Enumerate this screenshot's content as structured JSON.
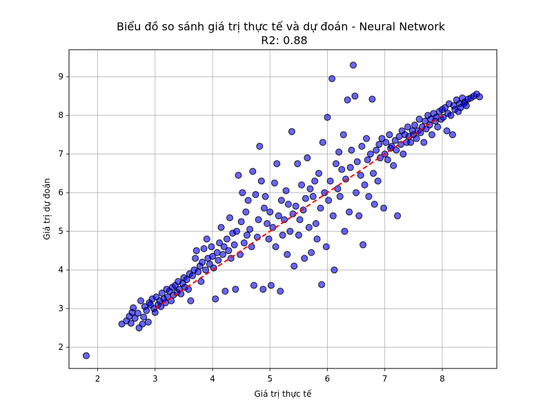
{
  "chart_data": {
    "type": "scatter",
    "title": "Biểu đồ so sánh giá trị thực tế và dự đoán - Neural Network",
    "subtitle": "R2: 0.88",
    "xlabel": "Giá trị thực tế",
    "ylabel": "Giá trị dự đoán",
    "xlim": [
      1.5,
      8.95
    ],
    "ylim": [
      1.45,
      9.7
    ],
    "xticks": [
      2,
      3,
      4,
      5,
      6,
      7,
      8
    ],
    "yticks": [
      2,
      3,
      4,
      5,
      6,
      7,
      8,
      9
    ],
    "grid": true,
    "point_color": "#0000ff",
    "reference_line": {
      "x": [
        3.0,
        8.0
      ],
      "y": [
        3.0,
        8.0
      ],
      "color": "#ff0000",
      "style": "dashed"
    },
    "points": [
      [
        1.8,
        1.78
      ],
      [
        2.42,
        2.6
      ],
      [
        2.5,
        2.68
      ],
      [
        2.55,
        2.8
      ],
      [
        2.58,
        2.62
      ],
      [
        2.6,
        2.9
      ],
      [
        2.62,
        3.02
      ],
      [
        2.65,
        2.75
      ],
      [
        2.7,
        2.88
      ],
      [
        2.72,
        2.5
      ],
      [
        2.75,
        3.2
      ],
      [
        2.78,
        2.6
      ],
      [
        2.8,
        2.78
      ],
      [
        2.82,
        3.05
      ],
      [
        2.85,
        2.95
      ],
      [
        2.88,
        2.65
      ],
      [
        2.9,
        3.15
      ],
      [
        2.92,
        3.1
      ],
      [
        2.95,
        3.25
      ],
      [
        2.98,
        3.0
      ],
      [
        3.0,
        2.9
      ],
      [
        3.02,
        3.3
      ],
      [
        3.05,
        3.1
      ],
      [
        3.08,
        3.2
      ],
      [
        3.1,
        3.05
      ],
      [
        3.12,
        3.4
      ],
      [
        3.15,
        3.25
      ],
      [
        3.18,
        3.15
      ],
      [
        3.2,
        3.5
      ],
      [
        3.22,
        3.3
      ],
      [
        3.25,
        3.45
      ],
      [
        3.28,
        3.2
      ],
      [
        3.3,
        3.55
      ],
      [
        3.32,
        3.35
      ],
      [
        3.35,
        3.6
      ],
      [
        3.38,
        3.42
      ],
      [
        3.4,
        3.7
      ],
      [
        3.42,
        3.5
      ],
      [
        3.45,
        3.38
      ],
      [
        3.48,
        3.65
      ],
      [
        3.5,
        3.8
      ],
      [
        3.52,
        3.55
      ],
      [
        3.55,
        3.75
      ],
      [
        3.58,
        3.5
      ],
      [
        3.6,
        3.9
      ],
      [
        3.62,
        3.2
      ],
      [
        3.65,
        3.85
      ],
      [
        3.68,
        4.0
      ],
      [
        3.7,
        4.3
      ],
      [
        3.72,
        4.5
      ],
      [
        3.75,
        3.95
      ],
      [
        3.78,
        4.1
      ],
      [
        3.8,
        3.7
      ],
      [
        3.82,
        4.2
      ],
      [
        3.85,
        4.55
      ],
      [
        3.88,
        4.0
      ],
      [
        3.9,
        4.8
      ],
      [
        3.92,
        4.3
      ],
      [
        3.95,
        4.15
      ],
      [
        3.98,
        4.6
      ],
      [
        4.0,
        4.35
      ],
      [
        4.02,
        4.05
      ],
      [
        4.05,
        3.25
      ],
      [
        4.08,
        4.45
      ],
      [
        4.1,
        4.25
      ],
      [
        4.12,
        4.7
      ],
      [
        4.15,
        5.1
      ],
      [
        4.18,
        4.4
      ],
      [
        4.2,
        4.6
      ],
      [
        4.22,
        3.45
      ],
      [
        4.25,
        4.8
      ],
      [
        4.28,
        4.5
      ],
      [
        4.3,
        5.35
      ],
      [
        4.32,
        4.3
      ],
      [
        4.35,
        4.95
      ],
      [
        4.38,
        4.65
      ],
      [
        4.4,
        3.5
      ],
      [
        4.42,
        5.0
      ],
      [
        4.45,
        6.45
      ],
      [
        4.48,
        4.4
      ],
      [
        4.5,
        5.25
      ],
      [
        4.52,
        6.0
      ],
      [
        4.55,
        4.7
      ],
      [
        4.58,
        5.5
      ],
      [
        4.6,
        4.9
      ],
      [
        4.62,
        5.8
      ],
      [
        4.65,
        5.05
      ],
      [
        4.68,
        4.6
      ],
      [
        4.7,
        6.55
      ],
      [
        4.72,
        3.6
      ],
      [
        4.75,
        5.95
      ],
      [
        4.78,
        4.85
      ],
      [
        4.8,
        5.3
      ],
      [
        4.82,
        7.2
      ],
      [
        4.85,
        6.3
      ],
      [
        4.88,
        3.5
      ],
      [
        4.9,
        5.6
      ],
      [
        4.92,
        5.9
      ],
      [
        4.95,
        5.2
      ],
      [
        4.98,
        4.8
      ],
      [
        5.0,
        5.5
      ],
      [
        5.02,
        3.6
      ],
      [
        5.05,
        5.1
      ],
      [
        5.08,
        6.25
      ],
      [
        5.1,
        4.6
      ],
      [
        5.12,
        6.75
      ],
      [
        5.15,
        5.4
      ],
      [
        5.18,
        3.45
      ],
      [
        5.2,
        5.8
      ],
      [
        5.22,
        4.9
      ],
      [
        5.25,
        5.3
      ],
      [
        5.28,
        6.05
      ],
      [
        5.3,
        4.4
      ],
      [
        5.32,
        5.7
      ],
      [
        5.35,
        5.0
      ],
      [
        5.38,
        7.58
      ],
      [
        5.4,
        5.45
      ],
      [
        5.42,
        4.1
      ],
      [
        5.45,
        5.65
      ],
      [
        5.48,
        6.75
      ],
      [
        5.5,
        4.9
      ],
      [
        5.52,
        5.3
      ],
      [
        5.55,
        6.2
      ],
      [
        5.58,
        5.55
      ],
      [
        5.6,
        4.3
      ],
      [
        5.62,
        5.85
      ],
      [
        5.65,
        6.9
      ],
      [
        5.68,
        5.1
      ],
      [
        5.7,
        6.1
      ],
      [
        5.72,
        4.45
      ],
      [
        5.75,
        5.9
      ],
      [
        5.78,
        6.3
      ],
      [
        5.8,
        5.2
      ],
      [
        5.82,
        4.8
      ],
      [
        5.85,
        6.5
      ],
      [
        5.88,
        5.6
      ],
      [
        5.9,
        3.62
      ],
      [
        5.92,
        7.3
      ],
      [
        5.95,
        6.0
      ],
      [
        5.98,
        4.6
      ],
      [
        6.0,
        7.95
      ],
      [
        6.02,
        5.8
      ],
      [
        6.05,
        6.3
      ],
      [
        6.08,
        8.95
      ],
      [
        6.1,
        5.4
      ],
      [
        6.12,
        4.0
      ],
      [
        6.15,
        6.75
      ],
      [
        6.18,
        6.1
      ],
      [
        6.2,
        7.05
      ],
      [
        6.22,
        5.9
      ],
      [
        6.25,
        6.6
      ],
      [
        6.28,
        7.5
      ],
      [
        6.3,
        5.0
      ],
      [
        6.32,
        6.35
      ],
      [
        6.35,
        8.4
      ],
      [
        6.38,
        5.5
      ],
      [
        6.4,
        6.65
      ],
      [
        6.42,
        7.1
      ],
      [
        6.45,
        9.3
      ],
      [
        6.48,
        8.5
      ],
      [
        6.5,
        6.0
      ],
      [
        6.52,
        6.8
      ],
      [
        6.55,
        5.4
      ],
      [
        6.58,
        6.45
      ],
      [
        6.6,
        7.2
      ],
      [
        6.62,
        4.65
      ],
      [
        6.65,
        6.2
      ],
      [
        6.68,
        7.4
      ],
      [
        6.7,
        6.85
      ],
      [
        6.72,
        5.9
      ],
      [
        6.75,
        7.0
      ],
      [
        6.78,
        8.42
      ],
      [
        6.8,
        6.5
      ],
      [
        6.82,
        5.7
      ],
      [
        6.85,
        7.1
      ],
      [
        6.88,
        6.3
      ],
      [
        6.9,
        7.25
      ],
      [
        6.92,
        6.9
      ],
      [
        6.95,
        7.4
      ],
      [
        6.98,
        5.6
      ],
      [
        7.0,
        7.0
      ],
      [
        7.02,
        7.3
      ],
      [
        7.05,
        6.85
      ],
      [
        7.08,
        7.5
      ],
      [
        7.1,
        7.15
      ],
      [
        7.12,
        7.2
      ],
      [
        7.15,
        6.7
      ],
      [
        7.18,
        7.35
      ],
      [
        7.2,
        7.1
      ],
      [
        7.22,
        5.4
      ],
      [
        7.25,
        7.45
      ],
      [
        7.28,
        7.25
      ],
      [
        7.3,
        7.6
      ],
      [
        7.32,
        7.0
      ],
      [
        7.35,
        7.5
      ],
      [
        7.38,
        7.3
      ],
      [
        7.4,
        7.7
      ],
      [
        7.42,
        7.45
      ],
      [
        7.45,
        7.3
      ],
      [
        7.48,
        7.6
      ],
      [
        7.5,
        7.5
      ],
      [
        7.52,
        7.75
      ],
      [
        7.55,
        7.4
      ],
      [
        7.58,
        7.6
      ],
      [
        7.6,
        7.9
      ],
      [
        7.62,
        7.55
      ],
      [
        7.65,
        7.7
      ],
      [
        7.68,
        7.3
      ],
      [
        7.7,
        7.85
      ],
      [
        7.72,
        7.65
      ],
      [
        7.75,
        8.0
      ],
      [
        7.78,
        7.75
      ],
      [
        7.8,
        7.9
      ],
      [
        7.82,
        7.5
      ],
      [
        7.85,
        8.05
      ],
      [
        7.88,
        7.85
      ],
      [
        7.9,
        7.95
      ],
      [
        7.92,
        7.7
      ],
      [
        7.95,
        8.1
      ],
      [
        7.98,
        7.9
      ],
      [
        8.0,
        8.15
      ],
      [
        8.02,
        7.95
      ],
      [
        8.05,
        8.2
      ],
      [
        8.08,
        7.6
      ],
      [
        8.1,
        8.05
      ],
      [
        8.12,
        8.3
      ],
      [
        8.15,
        8.0
      ],
      [
        8.18,
        7.5
      ],
      [
        8.2,
        8.25
      ],
      [
        8.22,
        8.15
      ],
      [
        8.25,
        8.4
      ],
      [
        8.28,
        8.1
      ],
      [
        8.3,
        8.3
      ],
      [
        8.32,
        8.2
      ],
      [
        8.35,
        8.45
      ],
      [
        8.38,
        8.3
      ],
      [
        8.4,
        8.35
      ],
      [
        8.42,
        8.25
      ],
      [
        8.45,
        8.42
      ],
      [
        8.5,
        8.45
      ],
      [
        8.55,
        8.5
      ],
      [
        8.6,
        8.55
      ],
      [
        8.65,
        8.48
      ]
    ]
  }
}
